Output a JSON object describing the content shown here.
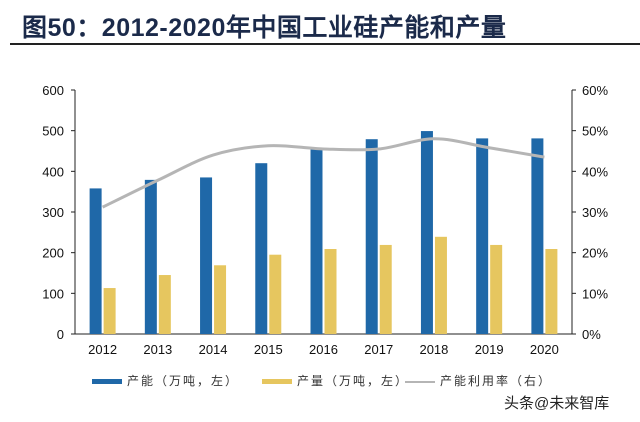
{
  "title": "图50：2012-2020年中国工业硅产能和产量",
  "watermark": "头条@未来智库",
  "chart_data": {
    "type": "bar",
    "title": "图50：2012-2020年中国工业硅产能和产量",
    "categories": [
      "2012",
      "2013",
      "2014",
      "2015",
      "2016",
      "2017",
      "2018",
      "2019",
      "2020"
    ],
    "series": [
      {
        "name": "产能（万吨，左）",
        "type": "bar",
        "axis": "left",
        "color": "#1f68a8",
        "values": [
          358,
          379,
          385,
          420,
          455,
          479,
          499,
          481,
          481
        ]
      },
      {
        "name": "产量（万吨，左）",
        "type": "bar",
        "axis": "left",
        "color": "#e6c65f",
        "values": [
          113,
          145,
          169,
          195,
          209,
          219,
          239,
          219,
          209
        ]
      },
      {
        "name": "产能利用率（右）",
        "type": "line",
        "axis": "right",
        "color": "#b5b5b5",
        "smooth": true,
        "values": [
          31.2,
          37.8,
          44,
          46.3,
          45.5,
          45.5,
          48,
          45.8,
          43.5
        ]
      }
    ],
    "ylim_left": [
      0,
      600
    ],
    "yticks_left": [
      "0",
      "100",
      "200",
      "300",
      "400",
      "500",
      "600"
    ],
    "ylim_right": [
      0,
      60
    ],
    "yticks_right": [
      "0%",
      "10%",
      "20%",
      "30%",
      "40%",
      "50%",
      "60%"
    ],
    "grid": false,
    "legend_position": "bottom"
  }
}
